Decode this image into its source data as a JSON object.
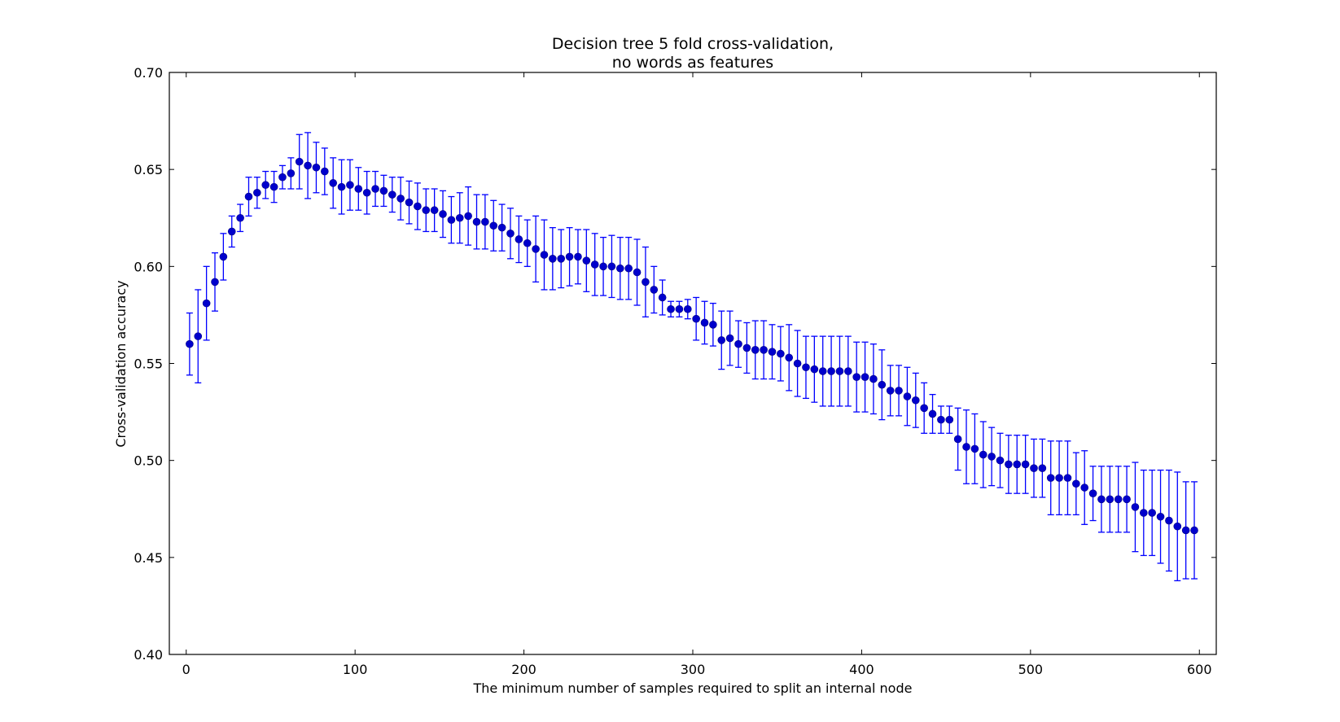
{
  "chart_data": {
    "type": "scatter",
    "title": [
      "Decision tree 5 fold cross-validation,",
      "no words as features"
    ],
    "xlabel": "The minimum number of samples required to split an internal node",
    "ylabel": "Cross-validation accuracy",
    "xlim": [
      -10,
      610
    ],
    "ylim": [
      0.4,
      0.7
    ],
    "xticks": [
      0,
      100,
      200,
      300,
      400,
      500,
      600
    ],
    "yticks": [
      0.4,
      0.45,
      0.5,
      0.55,
      0.6,
      0.65,
      0.7
    ],
    "grid": false,
    "marker_color": "#0000cc",
    "errorbar_color": "#0000ff",
    "series": [
      {
        "x": [
          2,
          7,
          12,
          17,
          22,
          27,
          32,
          37,
          42,
          47,
          52,
          57,
          62,
          67,
          72,
          77,
          82,
          87,
          92,
          97,
          102,
          107,
          112,
          117,
          122,
          127,
          132,
          137,
          142,
          147,
          152,
          157,
          162,
          167,
          172,
          177,
          182,
          187,
          192,
          197,
          202,
          207,
          212,
          217,
          222,
          227,
          232,
          237,
          242,
          247,
          252,
          257,
          262,
          267,
          272,
          277,
          282,
          287,
          292,
          297,
          302,
          307,
          312,
          317,
          322,
          327,
          332,
          337,
          342,
          347,
          352,
          357,
          362,
          367,
          372,
          377,
          382,
          387,
          392,
          397,
          402,
          407,
          412,
          417,
          422,
          427,
          432,
          437,
          442,
          447,
          452,
          457,
          462,
          467,
          472,
          477,
          482,
          487,
          492,
          497,
          502,
          507,
          512,
          517,
          522,
          527,
          532,
          537,
          542,
          547,
          552,
          557,
          562,
          567,
          572,
          577,
          582,
          587,
          592,
          597
        ],
        "y": [
          0.56,
          0.564,
          0.581,
          0.592,
          0.605,
          0.618,
          0.625,
          0.636,
          0.638,
          0.642,
          0.641,
          0.646,
          0.648,
          0.654,
          0.652,
          0.651,
          0.649,
          0.643,
          0.641,
          0.642,
          0.64,
          0.638,
          0.64,
          0.639,
          0.637,
          0.635,
          0.633,
          0.631,
          0.629,
          0.629,
          0.627,
          0.624,
          0.625,
          0.626,
          0.623,
          0.623,
          0.621,
          0.62,
          0.617,
          0.614,
          0.612,
          0.609,
          0.606,
          0.604,
          0.604,
          0.605,
          0.605,
          0.603,
          0.601,
          0.6,
          0.6,
          0.599,
          0.599,
          0.597,
          0.592,
          0.588,
          0.584,
          0.578,
          0.578,
          0.578,
          0.573,
          0.571,
          0.57,
          0.562,
          0.563,
          0.56,
          0.558,
          0.557,
          0.557,
          0.556,
          0.555,
          0.553,
          0.55,
          0.548,
          0.547,
          0.546,
          0.546,
          0.546,
          0.546,
          0.543,
          0.543,
          0.542,
          0.539,
          0.536,
          0.536,
          0.533,
          0.531,
          0.527,
          0.524,
          0.521,
          0.521,
          0.511,
          0.507,
          0.506,
          0.503,
          0.502,
          0.5,
          0.498,
          0.498,
          0.498,
          0.496,
          0.496,
          0.491,
          0.491,
          0.491,
          0.488,
          0.486,
          0.483,
          0.48,
          0.48,
          0.48,
          0.48,
          0.476,
          0.473,
          0.473,
          0.471,
          0.469,
          0.466,
          0.464,
          0.464
        ],
        "err": [
          0.016,
          0.024,
          0.019,
          0.015,
          0.012,
          0.008,
          0.007,
          0.01,
          0.008,
          0.007,
          0.008,
          0.006,
          0.008,
          0.014,
          0.017,
          0.013,
          0.012,
          0.013,
          0.014,
          0.013,
          0.011,
          0.011,
          0.009,
          0.008,
          0.009,
          0.011,
          0.011,
          0.012,
          0.011,
          0.011,
          0.012,
          0.012,
          0.013,
          0.015,
          0.014,
          0.014,
          0.013,
          0.012,
          0.013,
          0.012,
          0.012,
          0.017,
          0.018,
          0.016,
          0.015,
          0.015,
          0.014,
          0.016,
          0.016,
          0.015,
          0.016,
          0.016,
          0.016,
          0.017,
          0.018,
          0.012,
          0.009,
          0.004,
          0.004,
          0.005,
          0.011,
          0.011,
          0.011,
          0.015,
          0.014,
          0.012,
          0.013,
          0.015,
          0.015,
          0.014,
          0.014,
          0.017,
          0.017,
          0.016,
          0.017,
          0.018,
          0.018,
          0.018,
          0.018,
          0.018,
          0.018,
          0.018,
          0.018,
          0.013,
          0.013,
          0.015,
          0.014,
          0.013,
          0.01,
          0.007,
          0.007,
          0.016,
          0.019,
          0.018,
          0.017,
          0.015,
          0.014,
          0.015,
          0.015,
          0.015,
          0.015,
          0.015,
          0.019,
          0.019,
          0.019,
          0.016,
          0.019,
          0.014,
          0.017,
          0.017,
          0.017,
          0.017,
          0.023,
          0.022,
          0.022,
          0.024,
          0.026,
          0.028,
          0.025,
          0.025
        ]
      }
    ]
  }
}
